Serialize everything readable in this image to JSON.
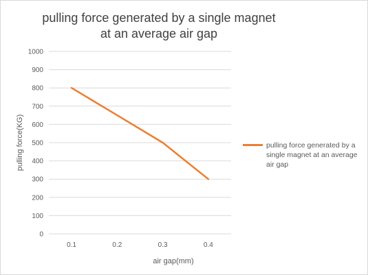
{
  "chart_data": {
    "type": "line",
    "title": "pulling force generated by a single magnet at an average air gap",
    "xlabel": "air gap(mm)",
    "ylabel": "pulling force(KG)",
    "categories": [
      "0.1",
      "0.2",
      "0.3",
      "0.4"
    ],
    "series": [
      {
        "name": "pulling force generated by a single magnet at an average air gap",
        "values": [
          800,
          650,
          500,
          300
        ]
      }
    ],
    "ylim": [
      0,
      1000
    ],
    "yticks": [
      "0",
      "100",
      "200",
      "300",
      "400",
      "500",
      "600",
      "700",
      "800",
      "900",
      "1000"
    ],
    "grid": "horizontal",
    "legend": "right",
    "colors": {
      "series": "#ED7D31",
      "grid": "#D9D9D9",
      "text": "#595959",
      "title": "#404040"
    }
  }
}
